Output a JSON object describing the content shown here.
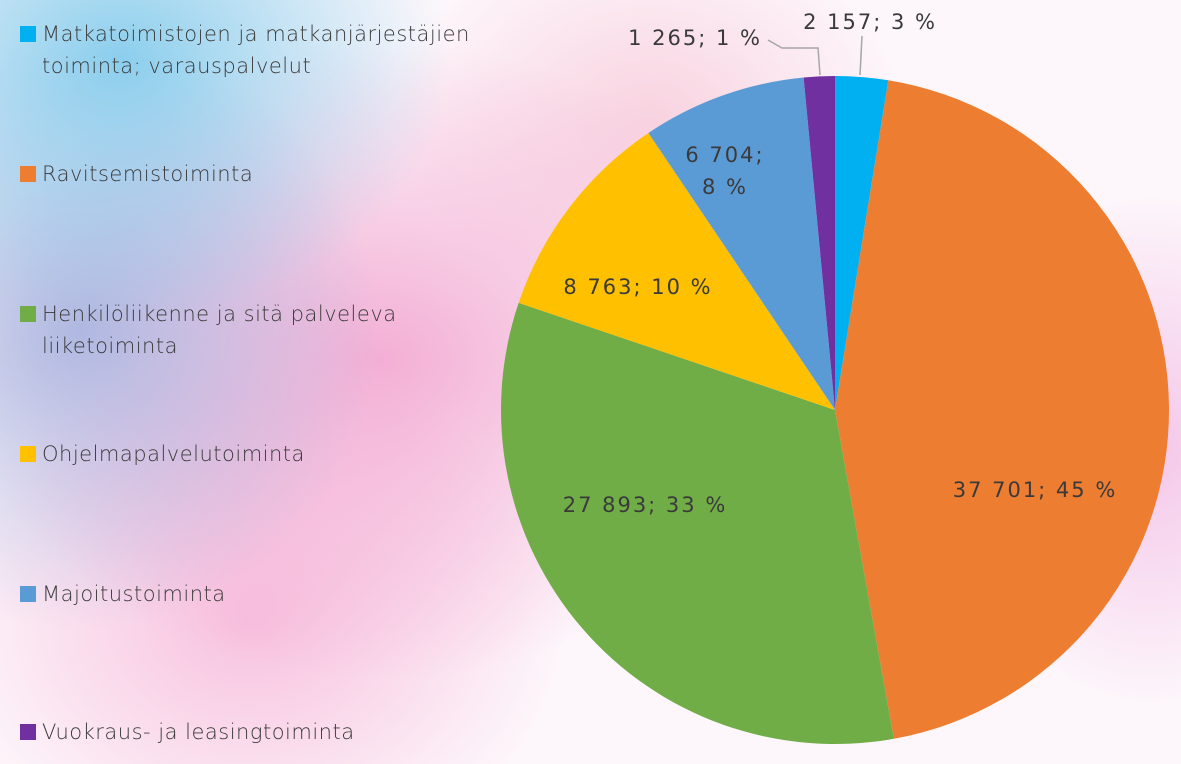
{
  "chart_data": {
    "type": "pie",
    "categories": [
      "Matkatoimistojen ja matkanjärjestäjien toiminta; varauspalvelut",
      "Ravitsemistoiminta",
      "Henkilöliikenne ja sitä palveleva liiketoiminta",
      "Ohjelmapalvelutoiminta",
      "Majoitustoiminta",
      "Vuokraus- ja leasingtoiminta"
    ],
    "values": [
      2157,
      37701,
      27893,
      8763,
      6704,
      1265
    ],
    "value_labels": [
      "2 157; 3 %",
      "37 701; 45 %",
      "27 893; 33 %",
      "8 763; 10 %",
      "6 704; 8 %",
      "1 265; 1 %"
    ],
    "colors": [
      "#00b0f0",
      "#ed7d31",
      "#70ad47",
      "#ffc000",
      "#5b9bd5",
      "#7030a0"
    ]
  }
}
